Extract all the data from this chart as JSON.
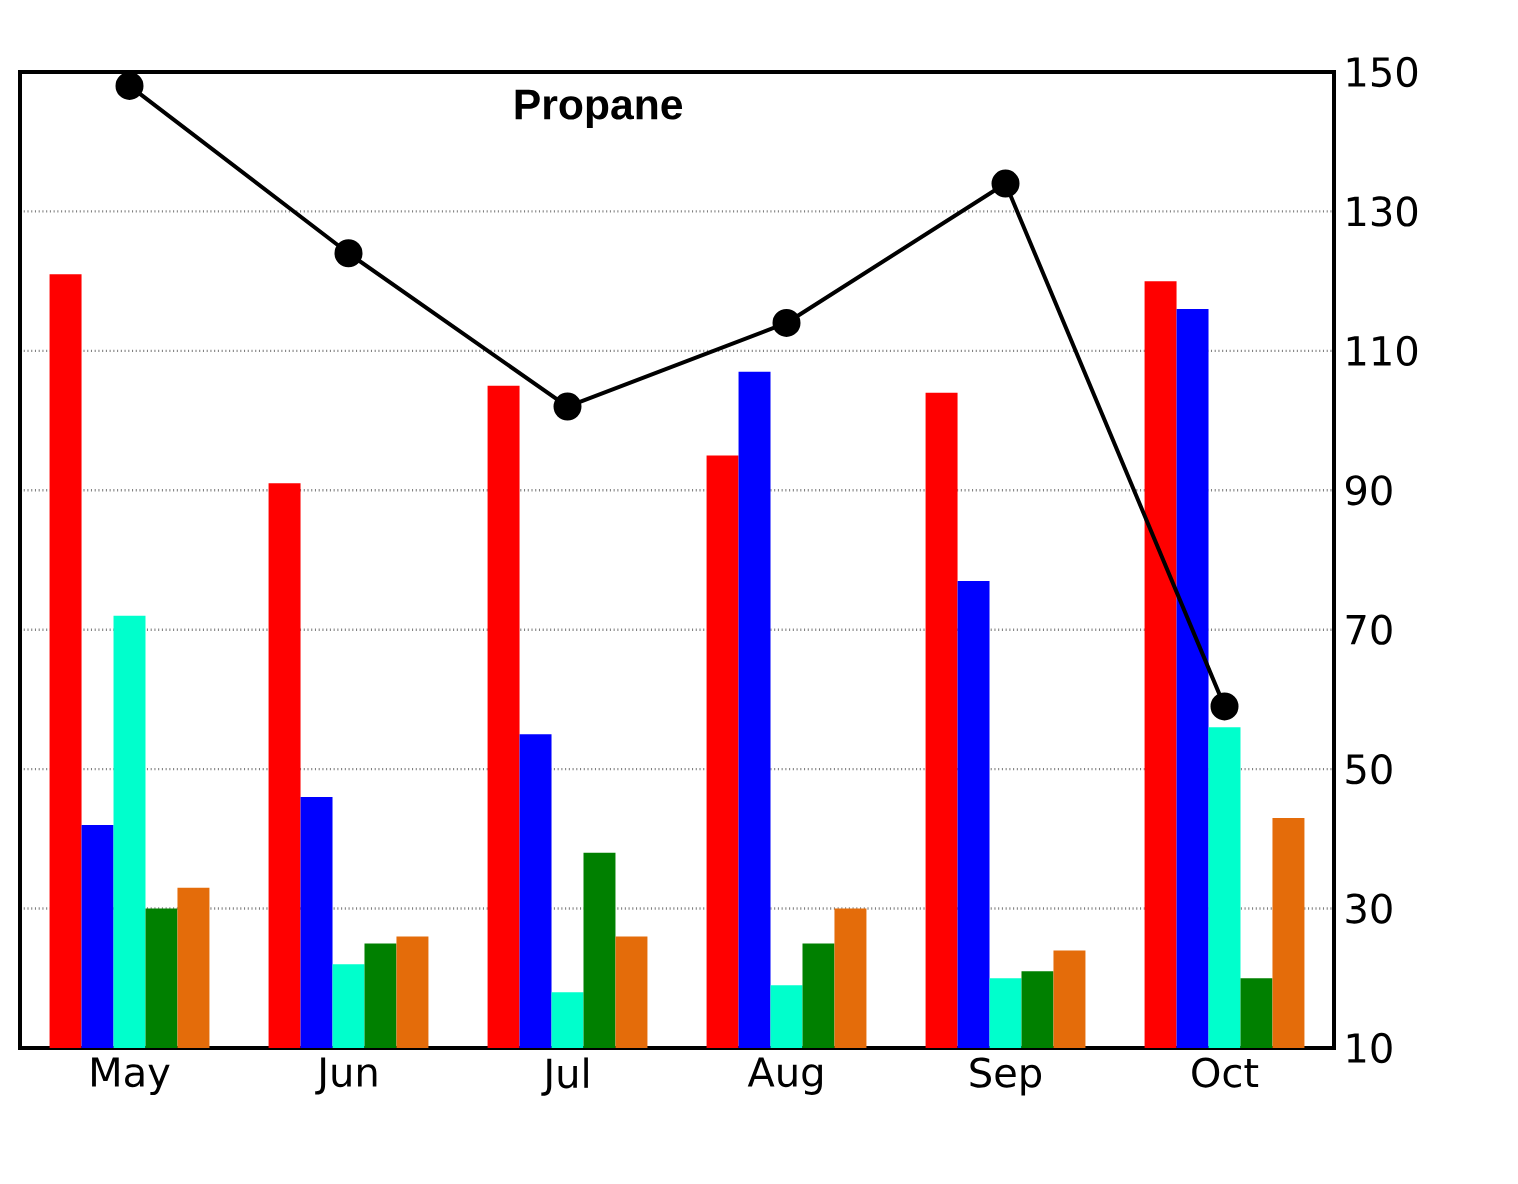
{
  "chart_data": {
    "type": "bar",
    "title": "Propane",
    "categories": [
      "May",
      "Jun",
      "Jul",
      "Aug",
      "Sep",
      "Oct"
    ],
    "series": [
      {
        "color": "#ff0000",
        "values": [
          121,
          91,
          105,
          95,
          104,
          120
        ]
      },
      {
        "color": "#0000ff",
        "values": [
          42,
          46,
          55,
          107,
          77,
          116
        ]
      },
      {
        "color": "#00ffcc",
        "values": [
          72,
          22,
          18,
          19,
          20,
          56
        ]
      },
      {
        "color": "#008000",
        "values": [
          30,
          25,
          38,
          25,
          21,
          20
        ]
      },
      {
        "color": "#e46c0a",
        "values": [
          33,
          26,
          26,
          30,
          24,
          43
        ]
      },
      {
        "type": "line",
        "color": "#000000",
        "marker": "circle",
        "values": [
          148,
          124,
          102,
          114,
          134,
          59
        ]
      }
    ],
    "ylim": [
      10,
      150
    ],
    "yticks": [
      10,
      30,
      50,
      70,
      90,
      110,
      130,
      150
    ],
    "grid": "y"
  }
}
